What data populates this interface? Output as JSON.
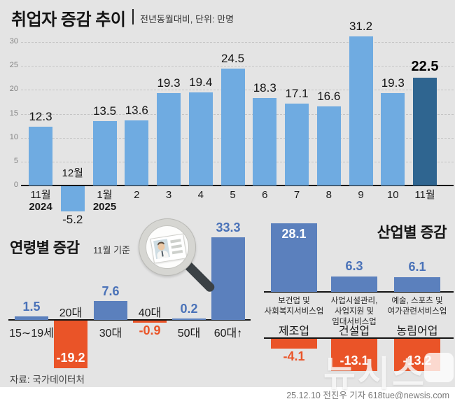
{
  "header": {
    "title": "취업자 증감 추이",
    "subtitle": "전년동월대비, 단위: 만명"
  },
  "colors": {
    "background": "#e4e4e4",
    "bar_light_blue": "#6fabe1",
    "bar_dark_blue": "#2f6590",
    "bar_steel_blue": "#5b80bd",
    "bar_orange": "#ea5428",
    "positive_label_blue": "#4a72b8",
    "negative_label_orange": "#ea5428"
  },
  "chart_data": [
    {
      "id": "monthly",
      "type": "bar",
      "title": "취업자 증감 추이",
      "subtitle": "전년동월대비, 단위: 만명",
      "unit": "만명",
      "categories": [
        "11월\n2024",
        "12월",
        "1월\n2025",
        "2",
        "3",
        "4",
        "5",
        "6",
        "7",
        "8",
        "9",
        "10",
        "11월"
      ],
      "values": [
        12.3,
        -5.2,
        13.5,
        13.6,
        19.3,
        19.4,
        24.5,
        18.3,
        17.1,
        16.6,
        31.2,
        19.3,
        22.5
      ],
      "highlight_index": 12,
      "yticks": [
        30,
        25,
        20,
        15,
        10,
        5,
        0
      ],
      "ylim": [
        -8,
        33
      ],
      "grid": true,
      "legend": "none"
    },
    {
      "id": "age",
      "type": "bar",
      "title": "연령별 증감",
      "subtitle": "11월 기준",
      "categories": [
        "15∼19세",
        "20대",
        "30대",
        "40대",
        "50대",
        "60대↑"
      ],
      "values": [
        1.5,
        -19.2,
        7.6,
        -0.9,
        0.2,
        33.3
      ]
    },
    {
      "id": "industry_positive",
      "type": "bar",
      "title": "산업별 증감",
      "categories": [
        "보건업 및\n사회복지서비스업",
        "사업시설관리,\n사업지원 및\n임대서비스업",
        "예술, 스포츠 및\n여가관련서비스업"
      ],
      "values": [
        28.1,
        6.3,
        6.1
      ]
    },
    {
      "id": "industry_negative",
      "type": "bar",
      "title": "산업별 증감(감소)",
      "categories": [
        "제조업",
        "건설업",
        "농림어업"
      ],
      "values": [
        -4.1,
        -13.1,
        -13.2
      ]
    }
  ],
  "footer": {
    "source": "자료: 국가데이터처",
    "credit": "25.12.10 전진우 기자 618tue@newsis.com"
  },
  "watermark": {
    "text": "뉴시스"
  }
}
